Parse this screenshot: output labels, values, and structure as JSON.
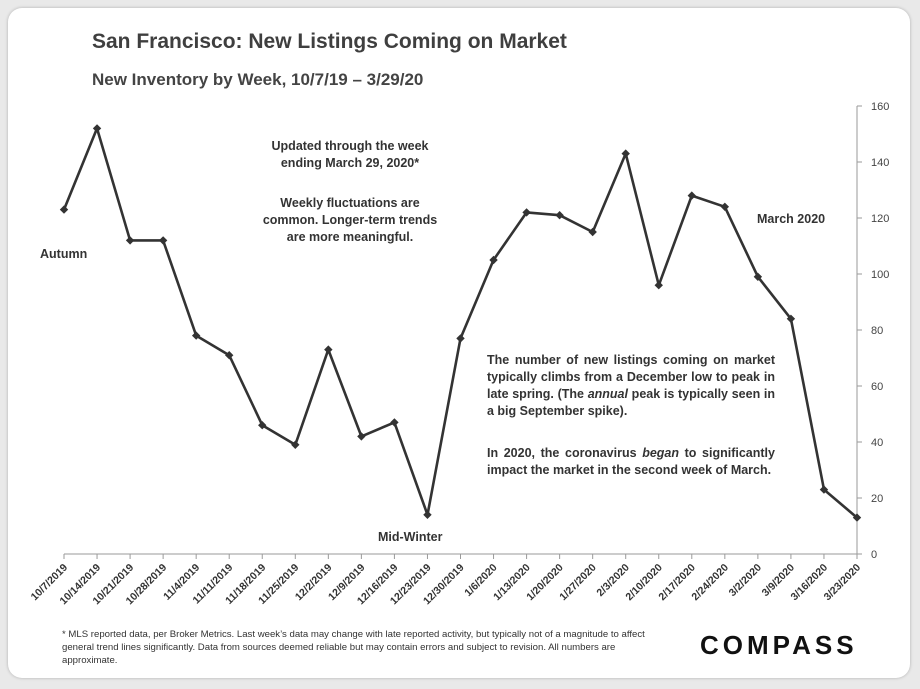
{
  "title": "San Francisco: New Listings Coming on Market",
  "subtitle": "New Inventory by Week, 10/7/19 – 3/29/20",
  "annotations": {
    "updated_1": "Updated through the week",
    "updated_2": "ending March 29, 2020*",
    "fluct_1": "Weekly fluctuations are",
    "fluct_2": "common. Longer-term trends",
    "fluct_3": "are more meaningful.",
    "autumn": "Autumn",
    "midwinter": "Mid-Winter",
    "march": "March 2020",
    "body_1": "The number of new listings coming on market typically climbs from a December low to peak in late spring. (The ",
    "body_1_em": "annual",
    "body_1_tail": " peak is typically seen in a big September spike).",
    "body_2": "In 2020, the coronavirus ",
    "body_2_em": "began",
    "body_2_tail": " to significantly impact the market in the second week of March."
  },
  "footer": "* MLS reported data, per Broker Metrics. Last week’s data may change with late reported activity, but typically not of a magnitude to affect general trend lines significantly. Data from sources deemed reliable but may contain errors and subject to revision. All numbers are approximate.",
  "logo": "COMPASS",
  "chart_data": {
    "type": "line",
    "categories": [
      "10/7/2019",
      "10/14/2019",
      "10/21/2019",
      "10/28/2019",
      "11/4/2019",
      "11/11/2019",
      "11/18/2019",
      "11/25/2019",
      "12/2/2019",
      "12/9/2019",
      "12/16/2019",
      "12/23/2019",
      "12/30/2019",
      "1/6/2020",
      "1/13/2020",
      "1/20/2020",
      "1/27/2020",
      "2/3/2020",
      "2/10/2020",
      "2/17/2020",
      "2/24/2020",
      "3/2/2020",
      "3/9/2020",
      "3/16/2020",
      "3/23/2020"
    ],
    "values": [
      123,
      152,
      112,
      112,
      78,
      71,
      46,
      39,
      73,
      42,
      47,
      14,
      77,
      105,
      122,
      121,
      115,
      143,
      96,
      128,
      124,
      99,
      84,
      23,
      13
    ],
    "ylim": [
      0,
      160
    ],
    "yticks": [
      0,
      20,
      40,
      60,
      80,
      100,
      120,
      140,
      160
    ],
    "y_axis_side": "right",
    "grid": false,
    "line_color": "#333333",
    "marker": "diamond"
  }
}
